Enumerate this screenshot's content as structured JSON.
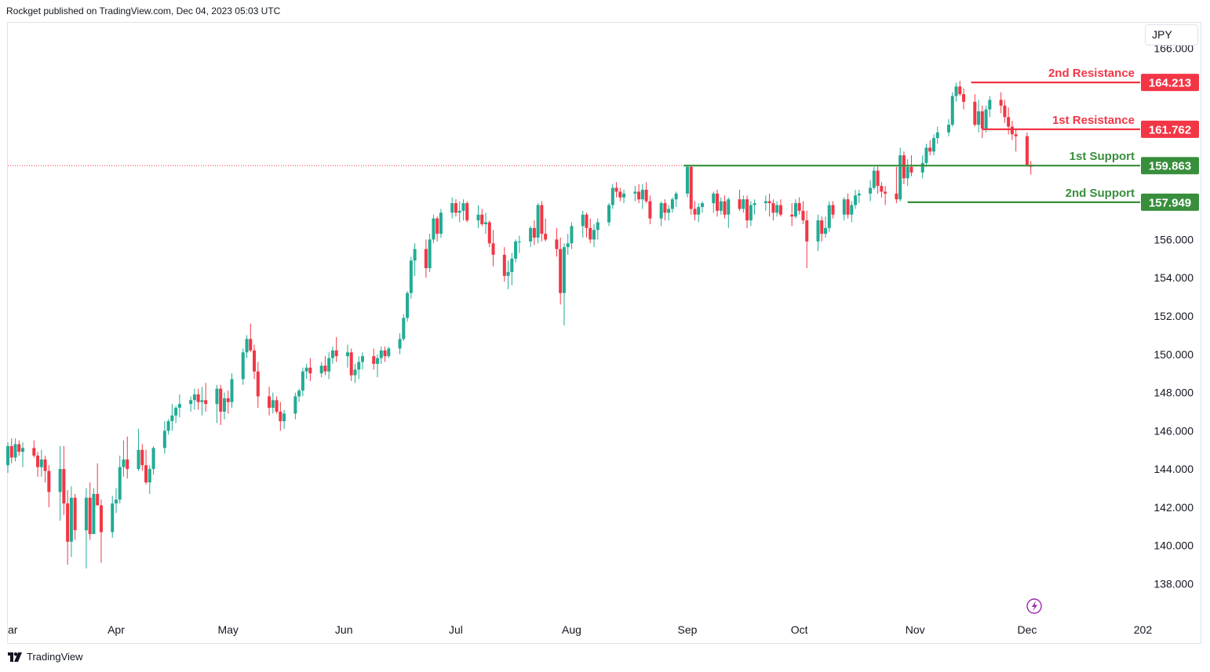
{
  "header": {
    "published": "Rockget published on TradingView.com, Dec 04, 2023 05:03 UTC"
  },
  "currency": "JPY",
  "footer": {
    "brand": "TradingView"
  },
  "colors": {
    "up": "#22ab94",
    "down": "#f23645",
    "resistance": "#f23645",
    "support": "#388e3c",
    "axis_text": "#131722",
    "last_price_line": "#f23645"
  },
  "chart_data": {
    "type": "candlestick",
    "symbol_currency": "JPY",
    "ylim": [
      136.7,
      166.7
    ],
    "y_ticks": [
      "138.000",
      "140.000",
      "142.000",
      "144.000",
      "146.000",
      "148.000",
      "150.000",
      "152.000",
      "154.000",
      "156.000",
      "166.000"
    ],
    "y_tick_values": [
      138,
      140,
      142,
      144,
      146,
      148,
      150,
      152,
      154,
      156,
      166
    ],
    "x_ticks": [
      {
        "label": "ar",
        "day": 0
      },
      {
        "label": "Apr",
        "day": 29
      },
      {
        "label": "May",
        "day": 59
      },
      {
        "label": "Jun",
        "day": 90
      },
      {
        "label": "Jul",
        "day": 120
      },
      {
        "label": "Aug",
        "day": 151
      },
      {
        "label": "Sep",
        "day": 182
      },
      {
        "label": "Oct",
        "day": 212
      },
      {
        "label": "Nov",
        "day": 243
      },
      {
        "label": "Dec",
        "day": 273
      },
      {
        "label": "202",
        "day": 304
      }
    ],
    "levels": [
      {
        "label": "2nd Resistance",
        "value_text": "164.213",
        "value": 164.213,
        "kind": "resistance",
        "from_day": 258
      },
      {
        "label": "1st Resistance",
        "value_text": "161.762",
        "value": 161.762,
        "kind": "resistance",
        "from_day": 261
      },
      {
        "label": "1st Support",
        "value_text": "159.863",
        "value": 159.863,
        "kind": "support",
        "from_day": 181
      },
      {
        "label": "2nd Support",
        "value_text": "157.949",
        "value": 157.949,
        "kind": "support",
        "from_day": 241
      }
    ],
    "last_price": 159.863,
    "candles": [
      [
        0,
        144.2,
        145.4,
        143.8,
        145.2
      ],
      [
        1,
        145.2,
        145.6,
        144.3,
        144.6
      ],
      [
        2,
        144.6,
        145.6,
        144.4,
        145.3
      ],
      [
        3,
        145.3,
        145.5,
        144.7,
        144.9
      ],
      [
        4,
        144.9,
        145.4,
        144.1,
        145.1
      ],
      [
        7,
        145.1,
        145.5,
        144.6,
        144.7
      ],
      [
        8,
        144.7,
        144.9,
        143.6,
        144.1
      ],
      [
        9,
        144.1,
        145.0,
        143.6,
        144.5
      ],
      [
        10,
        144.5,
        144.7,
        143.3,
        143.9
      ],
      [
        11,
        143.9,
        144.2,
        142.0,
        142.8
      ],
      [
        14,
        142.8,
        145.2,
        141.3,
        144.0
      ],
      [
        15,
        144.0,
        145.2,
        141.6,
        142.2
      ],
      [
        16,
        142.2,
        142.9,
        139.0,
        140.2
      ],
      [
        17,
        140.2,
        143.1,
        139.4,
        142.5
      ],
      [
        18,
        142.5,
        142.7,
        140.3,
        140.8
      ],
      [
        21,
        140.8,
        143.0,
        138.8,
        142.5
      ],
      [
        22,
        142.5,
        143.3,
        140.3,
        140.6
      ],
      [
        23,
        140.6,
        143.0,
        140.6,
        142.7
      ],
      [
        24,
        142.7,
        144.3,
        142.1,
        142.1
      ],
      [
        25,
        142.1,
        142.4,
        139.1,
        140.7
      ],
      [
        28,
        140.7,
        142.6,
        140.4,
        142.2
      ],
      [
        29,
        142.2,
        143.0,
        141.7,
        142.4
      ],
      [
        30,
        142.4,
        144.7,
        142.2,
        144.1
      ],
      [
        31,
        144.1,
        145.5,
        143.6,
        144.5
      ],
      [
        32,
        144.5,
        145.7,
        143.5,
        144.0
      ],
      [
        35,
        144.0,
        146.1,
        143.9,
        145.0
      ],
      [
        36,
        145.0,
        145.3,
        143.9,
        144.2
      ],
      [
        37,
        144.2,
        145.0,
        143.2,
        143.3
      ],
      [
        38,
        143.3,
        144.2,
        142.7,
        144.0
      ],
      [
        39,
        144.0,
        145.2,
        143.7,
        145.1
      ],
      [
        42,
        145.1,
        146.5,
        144.8,
        146.0
      ],
      [
        43,
        146.0,
        146.6,
        145.8,
        146.5
      ],
      [
        44,
        146.5,
        147.4,
        146.0,
        146.8
      ],
      [
        45,
        146.8,
        147.3,
        146.4,
        147.2
      ],
      [
        46,
        147.2,
        147.9,
        146.7,
        147.4
      ],
      [
        49,
        147.4,
        147.8,
        147.0,
        147.6
      ],
      [
        50,
        147.6,
        148.2,
        147.1,
        147.9
      ],
      [
        51,
        147.9,
        148.2,
        147.1,
        147.5
      ],
      [
        52,
        147.5,
        148.3,
        146.8,
        147.6
      ],
      [
        53,
        147.6,
        148.5,
        147.0,
        147.4
      ],
      [
        56,
        147.4,
        148.4,
        146.4,
        148.2
      ],
      [
        57,
        148.2,
        148.4,
        146.3,
        147.0
      ],
      [
        58,
        147.0,
        148.0,
        146.6,
        147.7
      ],
      [
        59,
        147.7,
        148.1,
        146.9,
        147.5
      ],
      [
        60,
        147.5,
        149.0,
        147.2,
        148.7
      ],
      [
        63,
        148.7,
        150.3,
        148.4,
        150.1
      ],
      [
        64,
        150.1,
        151.0,
        149.8,
        150.8
      ],
      [
        65,
        150.8,
        151.6,
        150.1,
        150.2
      ],
      [
        66,
        150.2,
        150.5,
        148.7,
        149.1
      ],
      [
        67,
        149.1,
        149.6,
        147.2,
        147.8
      ],
      [
        70,
        147.8,
        148.3,
        146.8,
        147.2
      ],
      [
        71,
        147.2,
        148.0,
        146.9,
        147.6
      ],
      [
        72,
        147.6,
        147.8,
        146.9,
        147.0
      ],
      [
        73,
        147.0,
        147.5,
        146.0,
        146.5
      ],
      [
        74,
        146.5,
        147.1,
        146.1,
        146.9
      ],
      [
        77,
        146.9,
        148.0,
        146.6,
        147.8
      ],
      [
        78,
        147.8,
        148.2,
        147.5,
        148.1
      ],
      [
        79,
        148.1,
        149.3,
        147.8,
        149.1
      ],
      [
        80,
        149.1,
        149.5,
        148.7,
        149.3
      ],
      [
        81,
        149.3,
        149.8,
        148.6,
        149.0
      ],
      [
        84,
        149.0,
        149.6,
        148.8,
        149.4
      ],
      [
        85,
        149.4,
        149.9,
        148.9,
        149.1
      ],
      [
        86,
        149.1,
        150.1,
        148.7,
        149.8
      ],
      [
        87,
        149.8,
        150.4,
        149.5,
        150.2
      ],
      [
        88,
        150.2,
        150.9,
        149.6,
        149.9
      ],
      [
        91,
        149.9,
        150.5,
        149.3,
        150.1
      ],
      [
        92,
        150.1,
        150.3,
        148.6,
        148.9
      ],
      [
        93,
        148.9,
        149.5,
        148.5,
        149.2
      ],
      [
        94,
        149.2,
        149.9,
        148.7,
        149.6
      ],
      [
        95,
        149.6,
        150.1,
        149.2,
        149.9
      ],
      [
        98,
        149.9,
        150.3,
        149.2,
        149.5
      ],
      [
        99,
        149.5,
        150.0,
        148.8,
        149.8
      ],
      [
        100,
        149.8,
        150.4,
        149.5,
        150.2
      ],
      [
        101,
        150.2,
        150.4,
        149.6,
        149.9
      ],
      [
        102,
        149.9,
        150.4,
        149.8,
        150.3
      ],
      [
        105,
        150.3,
        151.1,
        150.0,
        150.8
      ],
      [
        106,
        150.8,
        152.1,
        150.7,
        151.9
      ],
      [
        107,
        151.9,
        153.3,
        151.7,
        153.2
      ],
      [
        108,
        153.2,
        155.1,
        152.9,
        154.9
      ],
      [
        109,
        154.9,
        155.8,
        154.1,
        155.5
      ],
      [
        112,
        155.5,
        156.0,
        154.0,
        154.5
      ],
      [
        113,
        154.5,
        156.3,
        154.3,
        156.0
      ],
      [
        114,
        156.0,
        157.3,
        155.8,
        157.1
      ],
      [
        115,
        157.1,
        157.2,
        155.9,
        156.3
      ],
      [
        116,
        156.3,
        157.6,
        156.1,
        157.4
      ],
      [
        119,
        157.4,
        158.2,
        157.1,
        157.9
      ],
      [
        120,
        157.9,
        158.1,
        157.2,
        157.4
      ],
      [
        121,
        157.4,
        158.0,
        156.9,
        157.5
      ],
      [
        122,
        157.5,
        158.1,
        157.0,
        157.9
      ],
      [
        123,
        157.9,
        158.0,
        156.9,
        157.0
      ],
      [
        126,
        157.0,
        157.8,
        156.6,
        157.3
      ],
      [
        127,
        157.3,
        157.6,
        156.7,
        156.8
      ],
      [
        128,
        156.8,
        157.4,
        156.3,
        156.9
      ],
      [
        129,
        156.9,
        157.0,
        155.6,
        155.8
      ],
      [
        130,
        155.8,
        156.5,
        154.6,
        155.2
      ],
      [
        133,
        155.2,
        155.6,
        153.8,
        154.1
      ],
      [
        134,
        154.1,
        154.9,
        153.4,
        154.3
      ],
      [
        135,
        154.3,
        155.3,
        153.6,
        155.0
      ],
      [
        136,
        155.0,
        156.0,
        154.8,
        155.9
      ],
      [
        137,
        155.9,
        156.2,
        155.3,
        155.9
      ],
      [
        140,
        155.9,
        156.7,
        155.6,
        156.6
      ],
      [
        141,
        156.6,
        157.0,
        155.7,
        156.1
      ],
      [
        142,
        156.1,
        157.9,
        155.8,
        157.8
      ],
      [
        143,
        157.8,
        158.0,
        155.9,
        156.3
      ],
      [
        144,
        156.3,
        157.1,
        155.9,
        156.0
      ],
      [
        147,
        156.0,
        156.6,
        155.1,
        155.5
      ],
      [
        148,
        155.5,
        156.1,
        152.6,
        153.2
      ],
      [
        149,
        153.2,
        155.8,
        151.5,
        155.6
      ],
      [
        150,
        155.6,
        156.3,
        155.2,
        155.8
      ],
      [
        151,
        155.8,
        156.9,
        155.5,
        156.7
      ],
      [
        154,
        156.7,
        157.5,
        156.1,
        157.3
      ],
      [
        155,
        157.3,
        157.4,
        156.1,
        156.6
      ],
      [
        156,
        156.6,
        157.1,
        155.8,
        156.0
      ],
      [
        157,
        156.0,
        156.8,
        155.6,
        156.5
      ],
      [
        158,
        156.5,
        157.1,
        156.0,
        156.9
      ],
      [
        161,
        156.9,
        157.9,
        156.7,
        157.8
      ],
      [
        162,
        157.8,
        158.9,
        157.6,
        158.7
      ],
      [
        163,
        158.7,
        159.0,
        158.2,
        158.5
      ],
      [
        164,
        158.5,
        158.7,
        158.0,
        158.2
      ],
      [
        165,
        158.2,
        158.6,
        157.9,
        158.4
      ],
      [
        168,
        158.4,
        158.8,
        158.0,
        158.5
      ],
      [
        169,
        158.5,
        158.9,
        157.9,
        158.1
      ],
      [
        170,
        158.1,
        158.9,
        157.6,
        158.6
      ],
      [
        171,
        158.6,
        159.0,
        157.9,
        158.0
      ],
      [
        172,
        158.0,
        158.3,
        156.8,
        157.1
      ],
      [
        175,
        157.1,
        158.0,
        156.7,
        157.9
      ],
      [
        176,
        157.9,
        158.1,
        157.0,
        157.4
      ],
      [
        177,
        157.4,
        157.8,
        157.0,
        157.6
      ],
      [
        178,
        157.6,
        158.2,
        157.4,
        158.1
      ],
      [
        179,
        158.1,
        158.5,
        157.7,
        158.4
      ],
      [
        182,
        158.4,
        159.9,
        158.2,
        159.8
      ],
      [
        183,
        159.8,
        159.9,
        157.3,
        157.6
      ],
      [
        184,
        157.6,
        158.0,
        157.0,
        157.3
      ],
      [
        185,
        157.3,
        157.9,
        156.9,
        157.7
      ],
      [
        186,
        157.7,
        158.0,
        157.4,
        157.9
      ],
      [
        189,
        157.9,
        158.5,
        157.4,
        158.4
      ],
      [
        190,
        158.4,
        158.6,
        157.2,
        157.5
      ],
      [
        191,
        157.5,
        158.2,
        157.3,
        158.0
      ],
      [
        192,
        158.0,
        158.3,
        157.1,
        157.3
      ],
      [
        193,
        157.3,
        158.2,
        156.6,
        158.1
      ],
      [
        196,
        158.1,
        158.6,
        157.5,
        157.6
      ],
      [
        197,
        157.6,
        158.3,
        157.4,
        158.1
      ],
      [
        198,
        158.1,
        158.3,
        156.6,
        157.0
      ],
      [
        199,
        157.0,
        158.0,
        156.7,
        157.8
      ],
      [
        200,
        157.8,
        158.1,
        157.3,
        157.9
      ],
      [
        203,
        157.9,
        158.3,
        157.5,
        158.0
      ],
      [
        204,
        158.0,
        158.4,
        157.2,
        157.9
      ],
      [
        205,
        157.9,
        158.1,
        157.0,
        157.4
      ],
      [
        206,
        157.4,
        158.0,
        157.2,
        157.8
      ],
      [
        207,
        157.8,
        158.1,
        157.2,
        157.3
      ],
      [
        210,
        157.3,
        157.9,
        156.7,
        157.2
      ],
      [
        211,
        157.2,
        158.1,
        157.1,
        157.9
      ],
      [
        212,
        157.9,
        158.2,
        157.3,
        157.5
      ],
      [
        213,
        157.5,
        158.0,
        156.8,
        157.0
      ],
      [
        214,
        157.0,
        157.5,
        154.5,
        155.9
      ],
      [
        217,
        155.9,
        157.3,
        155.4,
        157.0
      ],
      [
        218,
        157.0,
        157.2,
        155.9,
        156.3
      ],
      [
        219,
        156.3,
        157.2,
        156.1,
        156.6
      ],
      [
        220,
        156.6,
        158.0,
        156.4,
        157.8
      ],
      [
        221,
        157.8,
        158.0,
        157.1,
        157.3
      ],
      [
        224,
        157.3,
        158.2,
        157.0,
        158.1
      ],
      [
        225,
        158.1,
        158.4,
        157.1,
        157.3
      ],
      [
        226,
        157.3,
        158.0,
        156.9,
        157.8
      ],
      [
        227,
        157.8,
        158.6,
        157.6,
        158.3
      ],
      [
        228,
        158.3,
        158.6,
        157.9,
        158.4
      ],
      [
        231,
        158.4,
        159.1,
        158.0,
        158.7
      ],
      [
        232,
        158.7,
        159.8,
        158.6,
        159.6
      ],
      [
        233,
        159.6,
        159.9,
        158.4,
        158.8
      ],
      [
        234,
        158.8,
        159.0,
        158.2,
        158.5
      ],
      [
        235,
        158.5,
        158.8,
        157.8,
        158.4
      ],
      [
        238,
        158.4,
        159.8,
        157.9,
        158.1
      ],
      [
        239,
        158.1,
        160.8,
        158.0,
        160.4
      ],
      [
        240,
        160.4,
        160.6,
        158.9,
        159.2
      ],
      [
        241,
        159.2,
        160.2,
        158.8,
        159.8
      ],
      [
        242,
        159.8,
        160.4,
        159.3,
        159.5
      ],
      [
        245,
        159.5,
        160.4,
        159.2,
        160.0
      ],
      [
        246,
        160.0,
        161.0,
        159.8,
        160.8
      ],
      [
        247,
        160.8,
        161.2,
        160.4,
        160.6
      ],
      [
        248,
        160.6,
        161.5,
        160.4,
        161.3
      ],
      [
        249,
        161.3,
        161.9,
        161.0,
        161.6
      ],
      [
        252,
        161.6,
        162.3,
        161.4,
        162.0
      ],
      [
        253,
        162.0,
        163.7,
        161.9,
        163.5
      ],
      [
        254,
        163.5,
        164.2,
        163.2,
        164.0
      ],
      [
        255,
        164.0,
        164.3,
        163.5,
        163.6
      ],
      [
        256,
        163.6,
        163.9,
        162.8,
        163.2
      ],
      [
        259,
        163.2,
        163.6,
        161.9,
        162.0
      ],
      [
        260,
        162.0,
        163.3,
        161.6,
        162.7
      ],
      [
        261,
        162.7,
        163.0,
        161.3,
        161.8
      ],
      [
        262,
        161.8,
        163.0,
        161.6,
        162.8
      ],
      [
        263,
        162.8,
        163.5,
        162.4,
        163.3
      ],
      [
        266,
        163.3,
        163.7,
        162.6,
        163.0
      ],
      [
        267,
        163.0,
        163.3,
        162.1,
        162.4
      ],
      [
        268,
        162.4,
        162.9,
        161.5,
        161.9
      ],
      [
        269,
        161.9,
        162.2,
        161.2,
        161.5
      ],
      [
        270,
        161.5,
        161.8,
        160.6,
        161.4
      ],
      [
        273,
        161.4,
        161.6,
        159.8,
        159.9
      ],
      [
        274,
        159.9,
        160.1,
        159.4,
        159.8
      ]
    ]
  }
}
